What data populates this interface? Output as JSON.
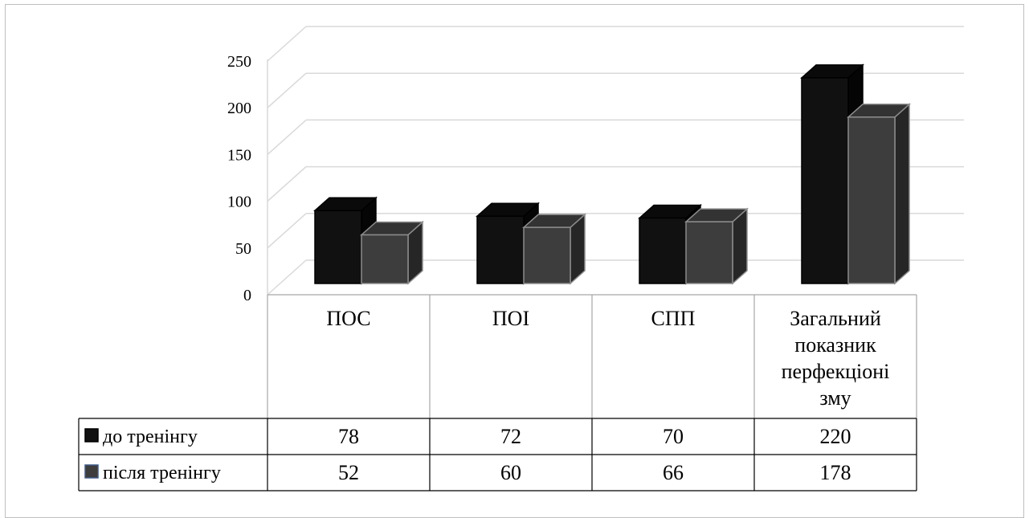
{
  "chart_data": {
    "type": "bar",
    "style": "3d-clustered-column-with-data-table",
    "categories": [
      "ПОС",
      "ПОІ",
      "СПП",
      [
        "Загальний",
        "показник",
        "перфекціоні",
        "зму"
      ]
    ],
    "series": [
      {
        "name": "до тренінгу",
        "values": [
          78,
          72,
          70,
          220
        ],
        "color": "#111111"
      },
      {
        "name": "після тренінгу",
        "values": [
          52,
          60,
          66,
          178
        ],
        "color": "#3d3d3d"
      }
    ],
    "y_ticks": [
      0,
      50,
      100,
      150,
      200,
      250
    ],
    "ylim": [
      0,
      250
    ],
    "grid": true,
    "legend": "data-table-left"
  }
}
